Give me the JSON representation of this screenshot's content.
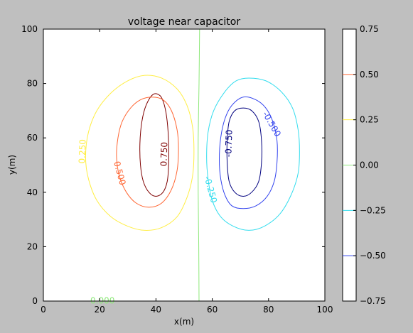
{
  "chart_data": {
    "type": "contour",
    "title": "voltage near capacitor",
    "xlabel": "x(m)",
    "ylabel": "y(m)",
    "xlim": [
      0,
      100
    ],
    "ylim": [
      0,
      100
    ],
    "xticks": [
      "0",
      "20",
      "40",
      "60",
      "80",
      "100"
    ],
    "yticks": [
      "0",
      "20",
      "40",
      "60",
      "80",
      "100"
    ],
    "grid": false,
    "contours": [
      {
        "level": 0.75,
        "label": "0.750",
        "color": "#7f0000",
        "points": [
          [
            39,
            76
          ],
          [
            41.5,
            75.5
          ],
          [
            43,
            72
          ],
          [
            44,
            66
          ],
          [
            44.5,
            58
          ],
          [
            44.5,
            50
          ],
          [
            44,
            44
          ],
          [
            42.5,
            40
          ],
          [
            40,
            38.5
          ],
          [
            37.5,
            40
          ],
          [
            35.5,
            44
          ],
          [
            34.5,
            50
          ],
          [
            34.3,
            58
          ],
          [
            35,
            66
          ],
          [
            36.5,
            72
          ]
        ]
      },
      {
        "level": 0.5,
        "label": "0.500",
        "color": "#ff6633",
        "points": [
          [
            38.5,
            75
          ],
          [
            42.5,
            74
          ],
          [
            45.5,
            70
          ],
          [
            47.5,
            63
          ],
          [
            48,
            56
          ],
          [
            47.5,
            48
          ],
          [
            45.5,
            41
          ],
          [
            42,
            36
          ],
          [
            37.5,
            34.5
          ],
          [
            33,
            36
          ],
          [
            29.5,
            40
          ],
          [
            27,
            46
          ],
          [
            26,
            53
          ],
          [
            26.5,
            60
          ],
          [
            28,
            66
          ],
          [
            31,
            71
          ],
          [
            34.5,
            74
          ]
        ]
      },
      {
        "level": 0.25,
        "label": "0.250",
        "color": "#ffee44",
        "points": [
          [
            36,
            83
          ],
          [
            42,
            82
          ],
          [
            47.5,
            78
          ],
          [
            51,
            72
          ],
          [
            53,
            64
          ],
          [
            53.5,
            55
          ],
          [
            53,
            46
          ],
          [
            51,
            38
          ],
          [
            47.5,
            31
          ],
          [
            42,
            27
          ],
          [
            36,
            26
          ],
          [
            30,
            27.5
          ],
          [
            24,
            31
          ],
          [
            19,
            37
          ],
          [
            16,
            45
          ],
          [
            15,
            53
          ],
          [
            16,
            62
          ],
          [
            19,
            70
          ],
          [
            24,
            76.5
          ],
          [
            30,
            81
          ]
        ]
      },
      {
        "level": 0.0,
        "label": "0.000",
        "color": "#8ee87a",
        "open": true,
        "points": [
          [
            55.5,
            100
          ],
          [
            55.3,
            80
          ],
          [
            55,
            60
          ],
          [
            55,
            40
          ],
          [
            55.2,
            20
          ],
          [
            55.3,
            0
          ]
        ]
      },
      {
        "level": -0.25,
        "label": "-0.250",
        "color": "#33ddee",
        "points": [
          [
            73,
            82
          ],
          [
            79,
            81
          ],
          [
            84.5,
            77
          ],
          [
            88.5,
            71
          ],
          [
            90.5,
            63
          ],
          [
            91,
            55
          ],
          [
            90.5,
            47
          ],
          [
            88,
            39
          ],
          [
            84,
            32
          ],
          [
            78.5,
            27.5
          ],
          [
            73,
            26
          ],
          [
            67.5,
            27.5
          ],
          [
            63,
            31
          ],
          [
            60,
            37
          ],
          [
            58.5,
            45
          ],
          [
            58,
            53
          ],
          [
            58.5,
            62
          ],
          [
            60.5,
            70
          ],
          [
            64.5,
            77
          ],
          [
            68.5,
            81
          ]
        ]
      },
      {
        "level": -0.5,
        "label": "-0.500",
        "color": "#3344ee",
        "points": [
          [
            71,
            75
          ],
          [
            75.5,
            74
          ],
          [
            79,
            71
          ],
          [
            81.5,
            66
          ],
          [
            83,
            59
          ],
          [
            83,
            51
          ],
          [
            82,
            44
          ],
          [
            79.5,
            38.5
          ],
          [
            75.5,
            35
          ],
          [
            71,
            34
          ],
          [
            67,
            35
          ],
          [
            64.5,
            39
          ],
          [
            63,
            45
          ],
          [
            62.5,
            52
          ],
          [
            63,
            60
          ],
          [
            64.5,
            67
          ],
          [
            67,
            72
          ]
        ]
      },
      {
        "level": -0.75,
        "label": "-0.750",
        "color": "#00007f",
        "points": [
          [
            71,
            71
          ],
          [
            74,
            70
          ],
          [
            76.5,
            66
          ],
          [
            77.5,
            59
          ],
          [
            77.5,
            51
          ],
          [
            76.5,
            44
          ],
          [
            74,
            40
          ],
          [
            71,
            38.5
          ],
          [
            68,
            40
          ],
          [
            66,
            44
          ],
          [
            65.3,
            51
          ],
          [
            65.3,
            59
          ],
          [
            66,
            66
          ],
          [
            68,
            70
          ]
        ]
      }
    ],
    "inline_labels": [
      {
        "text": "0.750",
        "x": 43,
        "y": 54,
        "rotation": -88,
        "color": "#7f0000"
      },
      {
        "text": "0.500",
        "x": 27,
        "y": 47,
        "rotation": 75,
        "color": "#ff6633"
      },
      {
        "text": "0.250",
        "x": 14,
        "y": 55,
        "rotation": -88,
        "color": "#ffee44"
      },
      {
        "text": "0.000",
        "x": 21,
        "y": 0,
        "rotation": 0,
        "color": "#8ee87a"
      },
      {
        "text": "-0.250",
        "x": 59.3,
        "y": 41,
        "rotation": 75,
        "color": "#33ddee"
      },
      {
        "text": "-0.500",
        "x": 81,
        "y": 65,
        "rotation": 60,
        "color": "#3344ee"
      },
      {
        "text": "-0.750",
        "x": 66,
        "y": 58,
        "rotation": -88,
        "color": "#00007f"
      }
    ],
    "colorbar": {
      "range": [
        -0.75,
        0.75
      ],
      "tick_labels": [
        "0.75",
        "0.50",
        "0.25",
        "0.00",
        "−0.25",
        "−0.50",
        "−0.75"
      ],
      "tick_values": [
        0.75,
        0.5,
        0.25,
        0.0,
        -0.25,
        -0.5,
        -0.75
      ],
      "line_levels": [
        {
          "value": 0.5,
          "color": "#ff6633"
        },
        {
          "value": 0.25,
          "color": "#ffee44"
        },
        {
          "value": 0.0,
          "color": "#8ee87a"
        },
        {
          "value": -0.25,
          "color": "#33ddee"
        },
        {
          "value": -0.5,
          "color": "#3344ee"
        }
      ]
    }
  }
}
